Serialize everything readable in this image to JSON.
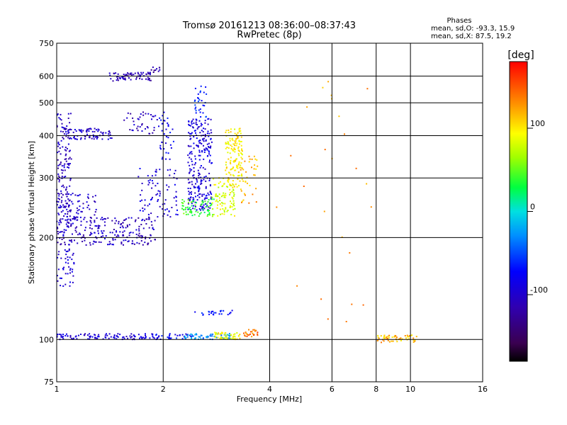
{
  "chart_data": {
    "type": "scatter",
    "title": "Tromsø 20161213 08:36:00–08:37:43",
    "subtitle": "RwPretec (8p)",
    "xlabel": "Frequency [MHz]",
    "ylabel": "Stationary phase Virtual Height [km]",
    "x_scale": "log",
    "y_scale": "log",
    "xlim": [
      1,
      16
    ],
    "ylim": [
      75,
      750
    ],
    "x_ticks": [
      1,
      2,
      4,
      6,
      8,
      10,
      16
    ],
    "y_ticks": [
      75,
      100,
      200,
      300,
      400,
      500,
      600,
      750
    ],
    "grid": true,
    "phases": {
      "heading": "Phases",
      "line_o": "mean, sd,O: -93.3, 15.9",
      "line_x": "mean, sd,X:  87.5, 19.2"
    },
    "colorbar": {
      "label": "[deg]",
      "min": -180,
      "max": 180,
      "ticks": [
        100,
        0,
        -100
      ]
    },
    "clusters": [
      {
        "x_range": [
          1.0,
          1.1
        ],
        "y_range": [
          190,
          470
        ],
        "phase": -110,
        "count": 170,
        "comment": "o-trace left edge"
      },
      {
        "x_range": [
          1.0,
          1.12
        ],
        "y_range": [
          140,
          185
        ],
        "phase": -100,
        "count": 45
      },
      {
        "x_range": [
          1.05,
          1.9
        ],
        "y_range": [
          190,
          230
        ],
        "phase": -110,
        "count": 210
      },
      {
        "x_range": [
          1.0,
          1.3
        ],
        "y_range": [
          220,
          270
        ],
        "phase": -105,
        "count": 70
      },
      {
        "x_range": [
          1.05,
          1.45
        ],
        "y_range": [
          390,
          420
        ],
        "phase": -105,
        "count": 80
      },
      {
        "x_range": [
          1.55,
          1.95
        ],
        "y_range": [
          405,
          470
        ],
        "phase": -110,
        "count": 40
      },
      {
        "x_range": [
          1.7,
          2.2
        ],
        "y_range": [
          230,
          320
        ],
        "phase": -95,
        "count": 80
      },
      {
        "x_range": [
          1.95,
          2.15
        ],
        "y_range": [
          340,
          470
        ],
        "phase": -85,
        "count": 35
      },
      {
        "x_range": [
          1.4,
          1.85
        ],
        "y_range": [
          580,
          615
        ],
        "phase": -115,
        "count": 70
      },
      {
        "x_range": [
          1.85,
          1.97
        ],
        "y_range": [
          615,
          650
        ],
        "phase": -120,
        "count": 10
      },
      {
        "x_range": [
          2.35,
          2.75
        ],
        "y_range": [
          240,
          450
        ],
        "phase": -95,
        "count": 260
      },
      {
        "x_range": [
          2.45,
          2.65
        ],
        "y_range": [
          450,
          570
        ],
        "phase": -60,
        "count": 30
      },
      {
        "x_range": [
          2.25,
          2.8
        ],
        "y_range": [
          230,
          260
        ],
        "phase": 40,
        "count": 70
      },
      {
        "x_range": [
          2.75,
          3.2
        ],
        "y_range": [
          230,
          300
        ],
        "phase": 85,
        "count": 90
      },
      {
        "x_range": [
          3.0,
          3.35
        ],
        "y_range": [
          280,
          420
        ],
        "phase": 100,
        "count": 140
      },
      {
        "x_range": [
          3.3,
          3.7
        ],
        "y_range": [
          250,
          350
        ],
        "phase": 120,
        "count": 35
      },
      {
        "x_range": [
          1.0,
          1.95
        ],
        "y_range": [
          100,
          104
        ],
        "phase": -100,
        "count": 110
      },
      {
        "x_range": [
          1.9,
          2.4
        ],
        "y_range": [
          100,
          104
        ],
        "phase": -80,
        "count": 30
      },
      {
        "x_range": [
          2.3,
          3.1
        ],
        "y_range": [
          100,
          104
        ],
        "phase": -30,
        "count": 60
      },
      {
        "x_range": [
          2.8,
          3.3
        ],
        "y_range": [
          100,
          105
        ],
        "phase": 95,
        "count": 50
      },
      {
        "x_range": [
          3.35,
          3.7
        ],
        "y_range": [
          102,
          107
        ],
        "phase": 140,
        "count": 25
      },
      {
        "x_range": [
          2.45,
          3.2
        ],
        "y_range": [
          118,
          122
        ],
        "phase": -70,
        "count": 25
      },
      {
        "x_range": [
          8.0,
          10.5
        ],
        "y_range": [
          98,
          103
        ],
        "phase": 120,
        "count": 55
      },
      {
        "x_range": [
          4.0,
          7.8
        ],
        "y_range": [
          110,
          580
        ],
        "phase": 130,
        "count": 25
      }
    ]
  }
}
